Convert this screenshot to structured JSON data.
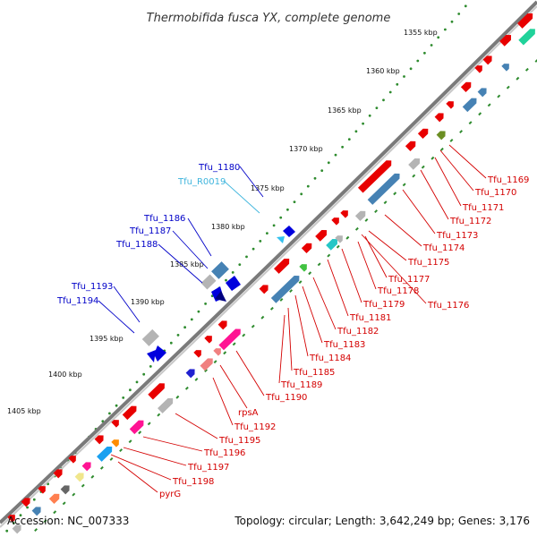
{
  "title": "Thermobifida fusca YX, complete genome",
  "footer": {
    "accession": "Accession: NC_007333",
    "summary": "Topology: circular; Length: 3,642,249 bp; Genes: 3,176"
  },
  "colors": {
    "backbone": "#808080",
    "tick_dots": "#2e8b2e",
    "label_red": "#d40000",
    "label_blue": "#0000c8",
    "label_cyan": "#3fb5dd"
  },
  "kbp_ticks": [
    "1355 kbp",
    "1360 kbp",
    "1365 kbp",
    "1370 kbp",
    "1375 kbp",
    "1380 kbp",
    "1385 kbp",
    "1390 kbp",
    "1395 kbp",
    "1400 kbp",
    "1405 kbp"
  ],
  "gene_labels_outer": [
    {
      "text": "Tfu_1180",
      "color": "blue"
    },
    {
      "text": "Tfu_R0019",
      "color": "cyan"
    },
    {
      "text": "Tfu_1186",
      "color": "blue"
    },
    {
      "text": "Tfu_1187",
      "color": "blue"
    },
    {
      "text": "Tfu_1188",
      "color": "blue"
    },
    {
      "text": "Tfu_1193",
      "color": "blue"
    },
    {
      "text": "Tfu_1194",
      "color": "blue"
    }
  ],
  "gene_labels_inner": [
    "Tfu_1169",
    "Tfu_1170",
    "Tfu_1171",
    "Tfu_1172",
    "Tfu_1173",
    "Tfu_1174",
    "Tfu_1175",
    "Tfu_1177",
    "Tfu_1178",
    "Tfu_1176",
    "Tfu_1179",
    "Tfu_1181",
    "Tfu_1182",
    "Tfu_1183",
    "Tfu_1184",
    "Tfu_1185",
    "Tfu_1189",
    "Tfu_1190",
    "rpsA",
    "Tfu_1192",
    "Tfu_1195",
    "Tfu_1196",
    "Tfu_1197",
    "Tfu_1198",
    "pyrG"
  ]
}
